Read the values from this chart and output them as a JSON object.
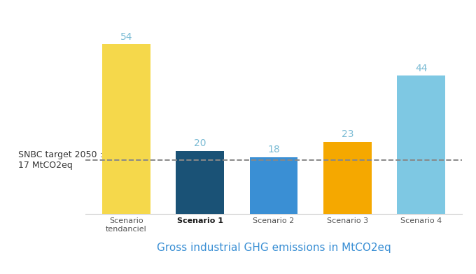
{
  "categories": [
    "Scenario\ntendanciel",
    "Scenario 1",
    "Scenario 2",
    "Scenario 3",
    "Scenario 4"
  ],
  "values": [
    54,
    20,
    18,
    23,
    44
  ],
  "bar_colors": [
    "#F5D84B",
    "#1A5276",
    "#3A8FD4",
    "#F5A800",
    "#7EC8E3"
  ],
  "value_label_color": "#7ABBD4",
  "dashed_line_y": 17,
  "dashed_line_color": "#888888",
  "snbc_label": "SNBC target 2050 :\n17 MtCO2eq",
  "snbc_label_color": "#333333",
  "snbc_label_fontsize": 9,
  "xlabel": "Gross industrial GHG emissions in MtCO2eq",
  "xlabel_color": "#3A8FD4",
  "xlabel_fontsize": 11,
  "ylim": [
    0,
    62
  ],
  "background_color": "#FFFFFF",
  "figsize": [
    6.8,
    3.92
  ],
  "dpi": 100,
  "bar_width": 0.65,
  "tick_label_fontsize": 8,
  "value_fontsize": 10
}
